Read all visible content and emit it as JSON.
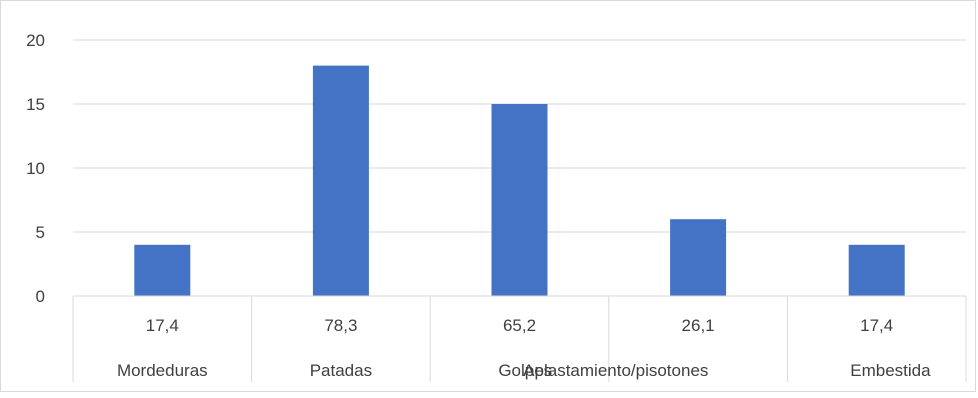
{
  "chart_data": {
    "type": "bar",
    "categories": [
      "Mordeduras",
      "Patadas",
      "Golpes",
      "Aplastamiento/pisotones",
      "Embestida"
    ],
    "values": [
      4,
      18,
      15,
      6,
      4
    ],
    "table_row_values": [
      "17,4",
      "78,3",
      "65,2",
      "26,1",
      "17,4"
    ],
    "ylim": [
      0,
      20
    ],
    "yticks": [
      0,
      5,
      10,
      15,
      20
    ],
    "grid": true,
    "bar_color": "#4472C4",
    "grid_color": "#d9d9d9",
    "text_color": "#404040"
  }
}
